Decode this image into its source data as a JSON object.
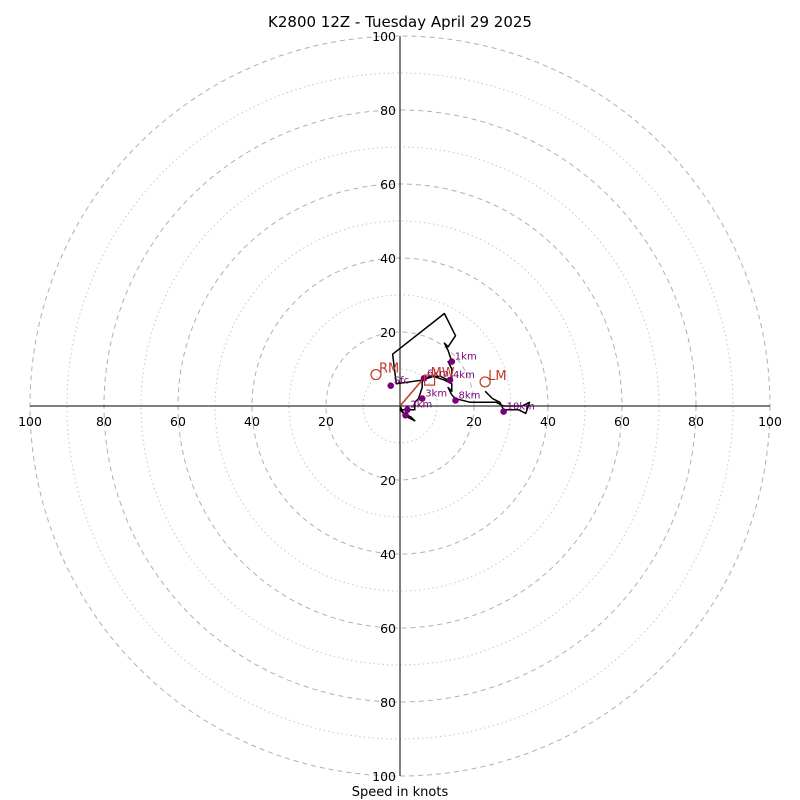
{
  "chart_data": {
    "type": "scatter",
    "title": "K2800 12Z - Tuesday April 29 2025",
    "xlabel": "Speed in knots",
    "ylabel": "",
    "xlim": [
      -100,
      100
    ],
    "ylim": [
      -100,
      100
    ],
    "grid": true,
    "rings": {
      "major": [
        20,
        40,
        60,
        80,
        100
      ],
      "minor": [
        10,
        30,
        50,
        70,
        90
      ]
    },
    "axes": {
      "top_ticks": [
        "20",
        "40",
        "60",
        "80",
        "100"
      ],
      "bottom_ticks": [
        "20",
        "40",
        "60",
        "80",
        "100"
      ],
      "left_ticks": [
        "20",
        "40",
        "60",
        "80",
        "100"
      ],
      "right_ticks": [
        "20",
        "40",
        "60",
        "80",
        "100"
      ]
    },
    "colors": {
      "trace": "#000000",
      "height_markers": "#7a007a",
      "motion_markers": "#c0392b",
      "grid": "#b0b0b0"
    },
    "series": [
      {
        "values": [
          [
            0,
            0
          ],
          [
            1,
            -2
          ],
          [
            3,
            -3
          ],
          [
            4,
            -4
          ],
          [
            2,
            -3
          ],
          [
            0,
            -1
          ],
          [
            2,
            -1
          ],
          [
            4,
            -1
          ],
          [
            4,
            1
          ],
          [
            5,
            2
          ],
          [
            6,
            5
          ],
          [
            6,
            7
          ],
          [
            8,
            8
          ],
          [
            11,
            8
          ],
          [
            13,
            7
          ],
          [
            14,
            7
          ],
          [
            14,
            10
          ],
          [
            13,
            12
          ],
          [
            14,
            12
          ],
          [
            13,
            15
          ],
          [
            12,
            17
          ],
          [
            13,
            16
          ],
          [
            15,
            19
          ],
          [
            12,
            25
          ],
          [
            -2,
            14
          ],
          [
            -1,
            6
          ],
          [
            6,
            7
          ],
          [
            9,
            8
          ],
          [
            12,
            7
          ],
          [
            14,
            6
          ],
          [
            14,
            4
          ],
          [
            13,
            5
          ],
          [
            14,
            3
          ],
          [
            15,
            2
          ],
          [
            19,
            1
          ],
          [
            23,
            1
          ],
          [
            26,
            1
          ],
          [
            28,
            0
          ],
          [
            31,
            0
          ],
          [
            33,
            0
          ],
          [
            35,
            1
          ],
          [
            34,
            -2
          ],
          [
            32,
            -1
          ],
          [
            28,
            -1
          ],
          [
            27,
            1
          ],
          [
            25,
            2
          ],
          [
            23,
            4
          ]
        ]
      },
      {
        "values": [
          [
            0,
            0
          ],
          [
            6,
            7
          ]
        ]
      }
    ],
    "height_markers": [
      {
        "label": "Sfc",
        "x": -2.5,
        "y": 5.5
      },
      {
        "label": "1km",
        "x": 14,
        "y": 12
      },
      {
        "label": "2km",
        "x": 2,
        "y": -1
      },
      {
        "label": "3km",
        "x": 6,
        "y": 2
      },
      {
        "label": "4km",
        "x": 13.5,
        "y": 7
      },
      {
        "label": "6km",
        "x": 6.5,
        "y": 7.5
      },
      {
        "label": "8km",
        "x": 15,
        "y": 1.5
      },
      {
        "label": "10km",
        "x": 28,
        "y": -1.5
      },
      {
        "label": "",
        "x": 1.5,
        "y": -2.5
      }
    ],
    "storm_motion": [
      {
        "label": "RM",
        "x": -6.5,
        "y": 8.5,
        "marker": "circle"
      },
      {
        "label": "LM",
        "x": 23,
        "y": 6.5,
        "marker": "circle"
      },
      {
        "label": "MW",
        "x": 8,
        "y": 7,
        "marker": "square"
      }
    ]
  }
}
